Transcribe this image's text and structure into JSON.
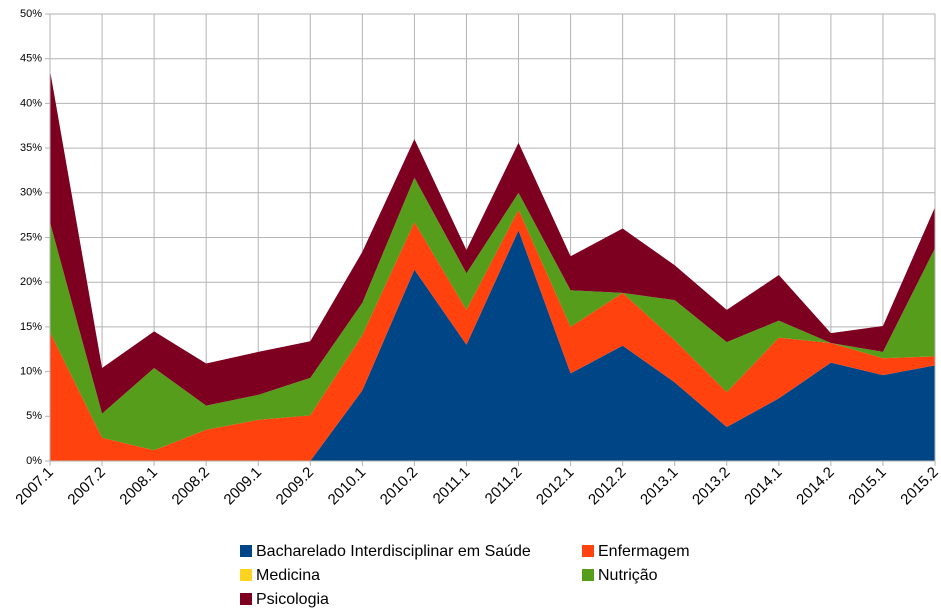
{
  "chart_data": {
    "type": "stacked_area",
    "categories": [
      "2007.1",
      "2007.2",
      "2008.1",
      "2008.2",
      "2009.1",
      "2009.2",
      "2010.1",
      "2010.2",
      "2011.1",
      "2011.2",
      "2012.1",
      "2012.2",
      "2013.1",
      "2013.2",
      "2014.1",
      "2014.2",
      "2015.1",
      "2015.2"
    ],
    "series": [
      {
        "name": "Bacharelado Interdisciplinar em Saúde",
        "color": "#004586",
        "values": [
          0,
          0,
          0,
          0,
          0,
          0,
          7.9,
          21.4,
          13,
          25.8,
          9.8,
          12.9,
          8.8,
          3.8,
          7,
          11,
          9.6,
          10.7
        ]
      },
      {
        "name": "Enfermagem",
        "color": "#ff420e",
        "values": [
          14.4,
          2.6,
          1.2,
          3.5,
          4.6,
          5.1,
          6.2,
          5.3,
          3.9,
          2.3,
          5.2,
          5.9,
          4.7,
          3.9,
          6.8,
          2.2,
          1.9,
          1
        ]
      },
      {
        "name": "Medicina",
        "color": "#ffd320",
        "values": [
          0,
          0,
          0,
          0,
          0,
          0,
          0,
          0,
          0,
          0,
          0,
          0,
          0,
          0,
          0,
          0,
          0,
          0
        ]
      },
      {
        "name": "Nutrição",
        "color": "#579d1c",
        "values": [
          12.3,
          2.7,
          9.2,
          2.7,
          2.8,
          4.2,
          3.6,
          5,
          4.1,
          1.9,
          4.1,
          0,
          4.5,
          5.6,
          1.9,
          0,
          0.7,
          12.1
        ]
      },
      {
        "name": "Psicologia",
        "color": "#7e0021",
        "values": [
          17,
          5.1,
          4.1,
          4.7,
          4.8,
          4.1,
          5.7,
          4.3,
          2.6,
          5.6,
          3.8,
          7.2,
          3.9,
          3.6,
          5.1,
          1.1,
          2.9,
          4.6
        ]
      }
    ],
    "ylim": [
      0,
      50
    ],
    "yticks": [
      {
        "value": 0,
        "label": "0%"
      },
      {
        "value": 5,
        "label": "5%"
      },
      {
        "value": 10,
        "label": "10%"
      },
      {
        "value": 15,
        "label": "15%"
      },
      {
        "value": 20,
        "label": "20%"
      },
      {
        "value": 25,
        "label": "25%"
      },
      {
        "value": 30,
        "label": "30%"
      },
      {
        "value": 35,
        "label": "35%"
      },
      {
        "value": 40,
        "label": "40%"
      },
      {
        "value": 45,
        "label": "45%"
      },
      {
        "value": 50,
        "label": "50%"
      }
    ],
    "grid": true,
    "legend": "bottom"
  }
}
